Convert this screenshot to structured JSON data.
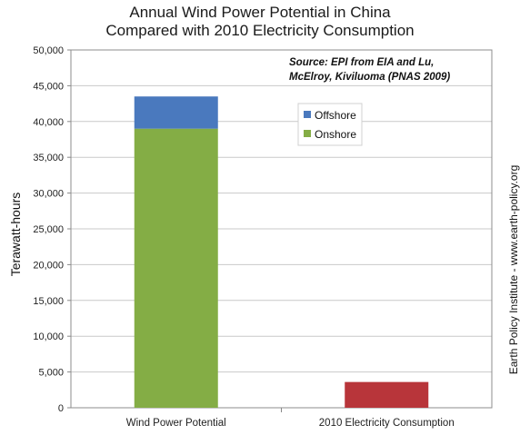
{
  "chart_data": {
    "type": "bar",
    "stacked": true,
    "title_line1": "Annual Wind Power Potential in China",
    "title_line2": "Compared with 2010 Electricity Consumption",
    "ylabel": "Terawatt-hours",
    "ylim": [
      0,
      50000
    ],
    "yticks": [
      "0",
      "5,000",
      "10,000",
      "15,000",
      "20,000",
      "25,000",
      "30,000",
      "35,000",
      "40,000",
      "45,000",
      "50,000"
    ],
    "categories": [
      "Wind Power Potential",
      "2010 Electricity Consumption"
    ],
    "series": [
      {
        "name": "Onshore",
        "color": "#84ad45",
        "values": [
          39000,
          0
        ]
      },
      {
        "name": "Offshore",
        "color": "#4a79be",
        "values": [
          4500,
          0
        ]
      },
      {
        "name": "",
        "color": "#b8353a",
        "values": [
          0,
          3600
        ]
      }
    ],
    "grid": true,
    "legend_position": "top-right inside plot",
    "source_line1": "Source: EPI from EIA and Lu,",
    "source_line2": "McElroy, Kiviluoma (PNAS 2009)",
    "sidebar_text": "Earth Policy Institute - www.earth-policy.org"
  }
}
